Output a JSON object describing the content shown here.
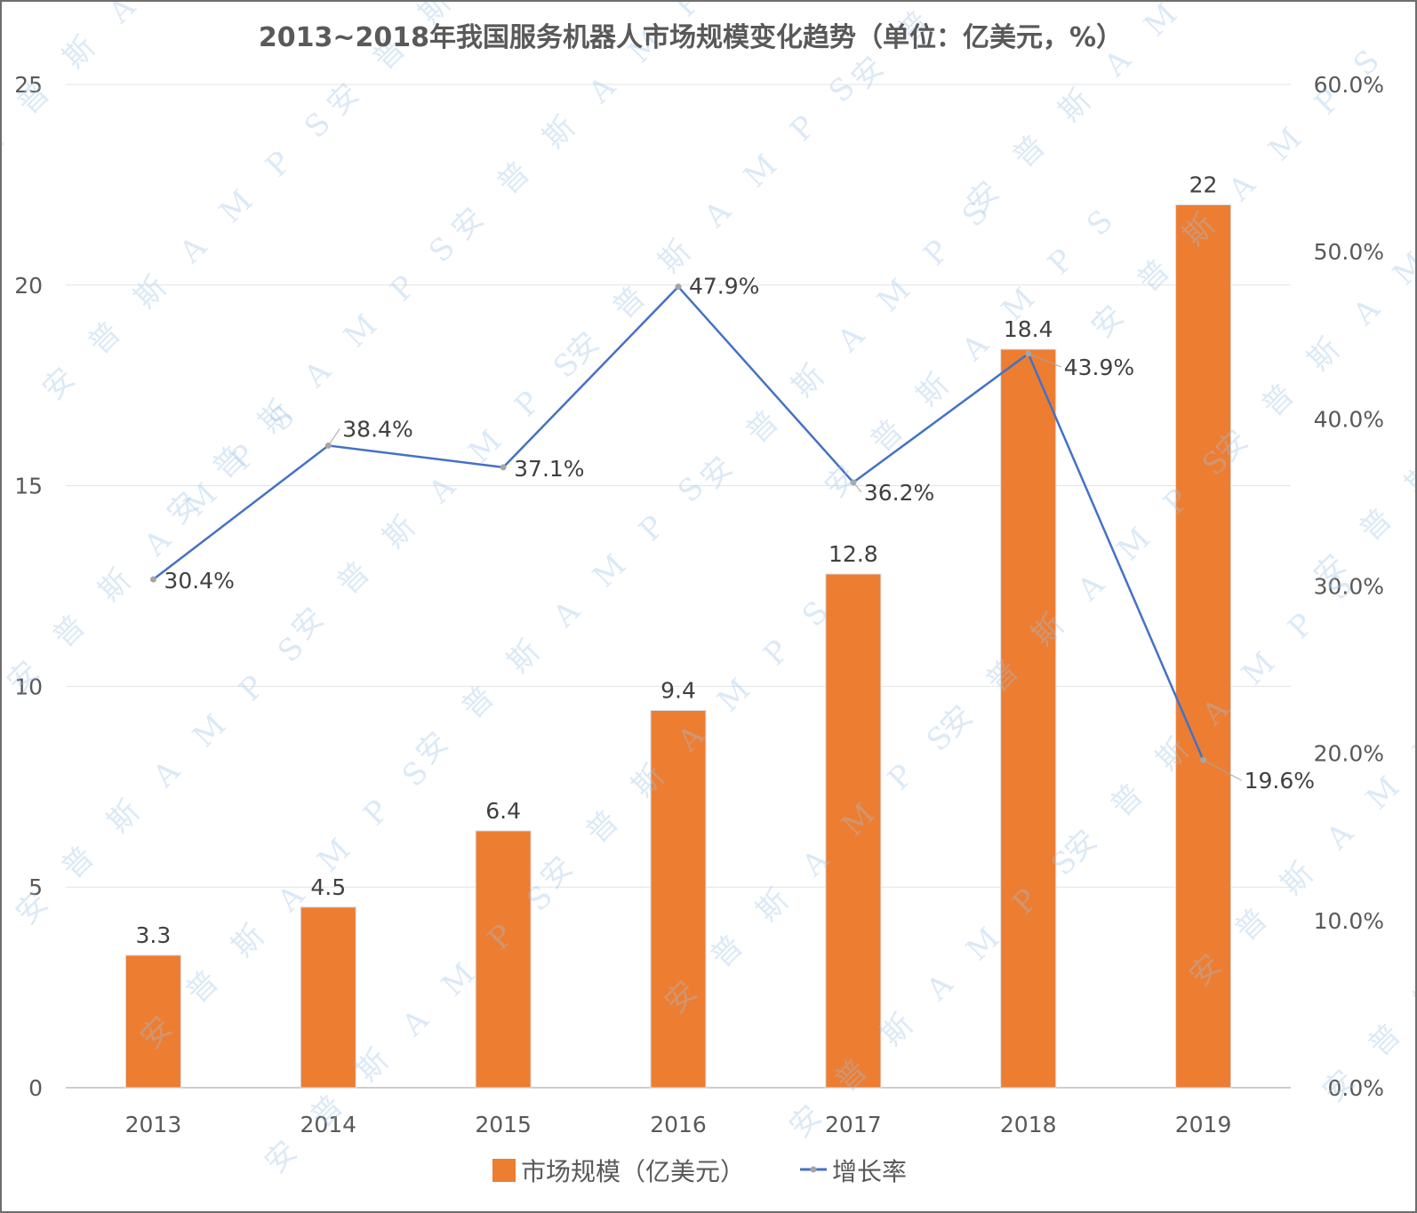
{
  "chart_data": {
    "type": "bar",
    "title": "2013~2018年我国服务机器人市场规模变化趋势（单位：亿美元，%）",
    "categories": [
      "2013",
      "2014",
      "2015",
      "2016",
      "2017",
      "2018",
      "2019"
    ],
    "series": [
      {
        "name": "市场规模（亿美元）",
        "type": "bar",
        "axis": "left",
        "color": "#ed7d31",
        "values": [
          3.3,
          4.5,
          6.4,
          9.4,
          12.8,
          18.4,
          22
        ],
        "labels": [
          "3.3",
          "4.5",
          "6.4",
          "9.4",
          "12.8",
          "18.4",
          "22"
        ]
      },
      {
        "name": "增长率",
        "type": "line",
        "axis": "right",
        "color": "#4472c4",
        "values": [
          30.4,
          38.4,
          37.1,
          47.9,
          36.2,
          43.9,
          19.6
        ],
        "labels": [
          "30.4%",
          "38.4%",
          "37.1%",
          "47.9%",
          "36.2%",
          "43.9%",
          "19.6%"
        ]
      }
    ],
    "y_left": {
      "min": 0,
      "max": 25,
      "ticks": [
        "0",
        "5",
        "10",
        "15",
        "20",
        "25"
      ]
    },
    "y_right": {
      "min": 0,
      "max": 60,
      "ticks": [
        "0.0%",
        "10.0%",
        "20.0%",
        "30.0%",
        "40.0%",
        "50.0%",
        "60.0%"
      ]
    },
    "grid": true,
    "legend_position": "bottom"
  },
  "watermark_text": "安 普 斯 A M P S"
}
